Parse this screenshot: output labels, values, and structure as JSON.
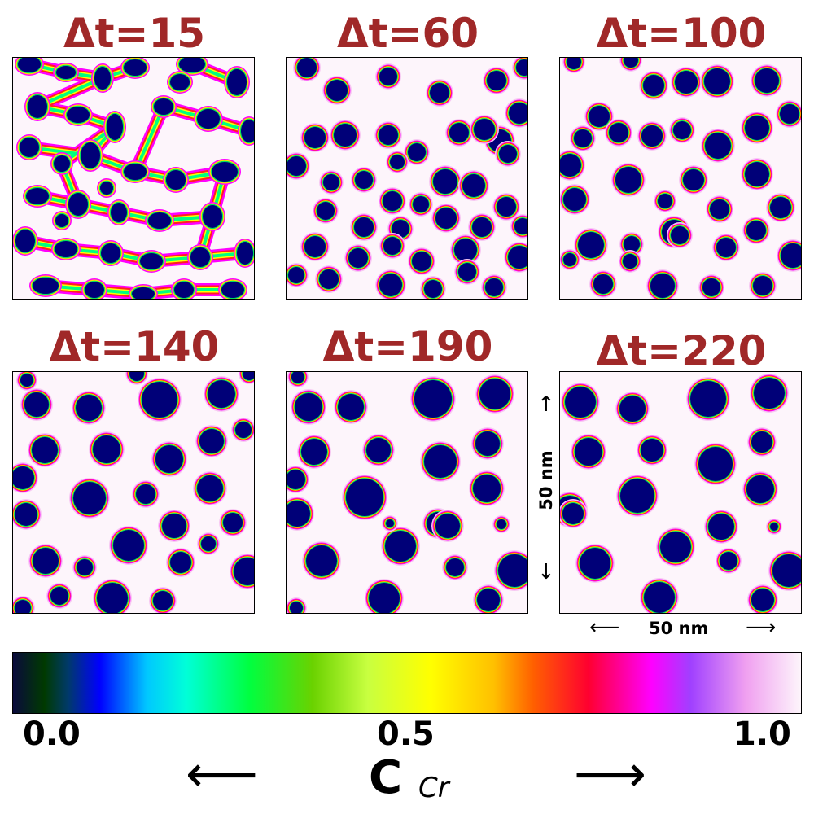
{
  "panels": [
    {
      "title": "Δt=15"
    },
    {
      "title": "Δt=60"
    },
    {
      "title": "Δt=100"
    },
    {
      "title": "Δt=140"
    },
    {
      "title": "Δt=190"
    },
    {
      "title": "Δt=220"
    }
  ],
  "scale": {
    "vertical_label": "50 nm",
    "horizontal_label": "50 nm",
    "arrow_up": "↑",
    "arrow_down": "↓",
    "arrow_left": "⟵",
    "arrow_right": "⟶"
  },
  "colorbar": {
    "ticks": [
      "0.0",
      "0.5",
      "1.0"
    ],
    "label_main": "C",
    "label_sub": "Cr",
    "arrow_left": "⟵",
    "arrow_right": "⟶",
    "stops": [
      {
        "pos": 0.0,
        "color": "#0a0a3c"
      },
      {
        "pos": 0.04,
        "color": "#003a00"
      },
      {
        "pos": 0.07,
        "color": "#003a6a"
      },
      {
        "pos": 0.11,
        "color": "#0000ff"
      },
      {
        "pos": 0.17,
        "color": "#00c8ff"
      },
      {
        "pos": 0.22,
        "color": "#00ffd8"
      },
      {
        "pos": 0.3,
        "color": "#00ff40"
      },
      {
        "pos": 0.38,
        "color": "#6ad200"
      },
      {
        "pos": 0.45,
        "color": "#c8ff40"
      },
      {
        "pos": 0.53,
        "color": "#ffff00"
      },
      {
        "pos": 0.61,
        "color": "#ffc000"
      },
      {
        "pos": 0.66,
        "color": "#ff6000"
      },
      {
        "pos": 0.73,
        "color": "#ff0030"
      },
      {
        "pos": 0.81,
        "color": "#ff00ff"
      },
      {
        "pos": 0.86,
        "color": "#a040ff"
      },
      {
        "pos": 0.93,
        "color": "#f0a0f0"
      },
      {
        "pos": 1.0,
        "color": "#fdf5fb"
      }
    ]
  }
}
